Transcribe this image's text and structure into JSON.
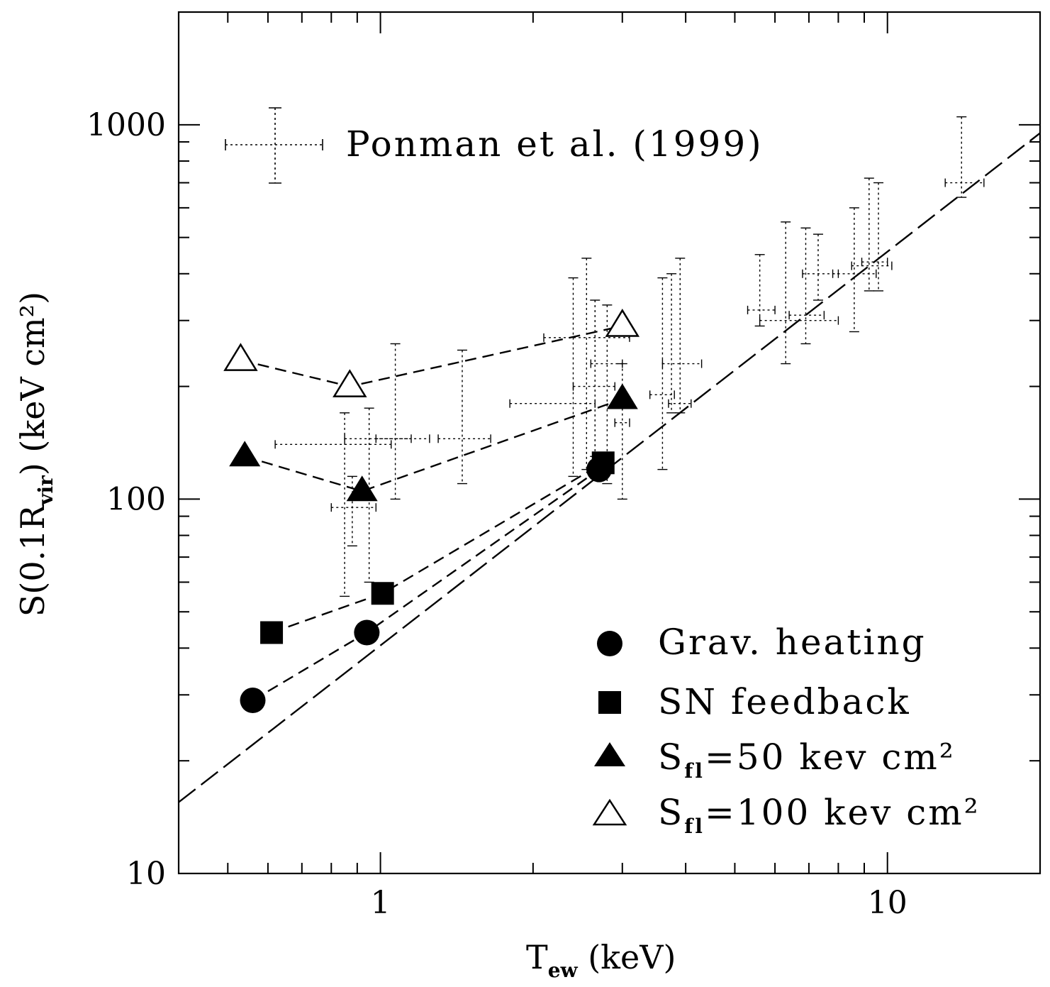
{
  "chart_data": {
    "type": "scatter",
    "xscale": "log",
    "yscale": "log",
    "xlim": [
      0.4,
      20
    ],
    "ylim": [
      10,
      2000
    ],
    "xlabel": {
      "main": "T",
      "sub": "ew",
      "rest": " (keV)"
    },
    "ylabel": {
      "main": "S(0.1R",
      "sub": "vir",
      "rest": ")  (keV cm²)"
    },
    "x_major_ticks": [
      {
        "value": 1,
        "label": "1"
      },
      {
        "value": 10,
        "label": "10"
      }
    ],
    "y_major_ticks": [
      {
        "value": 10,
        "label": "10"
      },
      {
        "value": 100,
        "label": "100"
      },
      {
        "value": 1000,
        "label": "1000"
      }
    ],
    "fit_line": {
      "style": "long-dash",
      "points": [
        [
          0.4,
          15.5
        ],
        [
          20,
          950
        ]
      ]
    },
    "series": [
      {
        "name": "Grav. heating",
        "marker": "circle-filled",
        "connect": true,
        "points": [
          [
            0.56,
            29
          ],
          [
            0.94,
            44
          ],
          [
            2.7,
            120
          ]
        ]
      },
      {
        "name": "SN feedback",
        "marker": "square-filled",
        "connect": true,
        "points": [
          [
            0.61,
            44
          ],
          [
            1.01,
            56
          ],
          [
            2.75,
            125
          ]
        ]
      },
      {
        "name_main": "S",
        "name_sub": "fl",
        "name_rest": "=50 kev cm²",
        "marker": "triangle-filled",
        "connect": true,
        "points": [
          [
            0.54,
            130
          ],
          [
            0.92,
            105
          ],
          [
            3.0,
            185
          ]
        ]
      },
      {
        "name_main": "S",
        "name_sub": "fl",
        "name_rest": "=100 kev cm²",
        "marker": "triangle-open",
        "connect": true,
        "points": [
          [
            0.53,
            235
          ],
          [
            0.87,
            200
          ],
          [
            3.0,
            290
          ]
        ]
      }
    ],
    "observations": {
      "name": "Ponman et al. (1999)",
      "marker": "dotted-errorbar",
      "points": [
        {
          "x": 0.85,
          "y": 140,
          "xerr": [
            0.62,
            1.05
          ],
          "yerr": [
            55,
            170
          ]
        },
        {
          "x": 0.88,
          "y": 95,
          "xerr": [
            0.8,
            0.98
          ],
          "yerr": [
            75,
            115
          ]
        },
        {
          "x": 0.95,
          "y": 145,
          "xerr": [
            0.85,
            1.25
          ],
          "yerr": [
            60,
            175
          ]
        },
        {
          "x": 1.07,
          "y": 145,
          "xerr": [
            0.98,
            1.15
          ],
          "yerr": [
            100,
            260
          ]
        },
        {
          "x": 1.45,
          "y": 145,
          "xerr": [
            1.3,
            1.65
          ],
          "yerr": [
            110,
            250
          ]
        },
        {
          "x": 2.4,
          "y": 180,
          "xerr": [
            1.8,
            2.65
          ],
          "yerr": [
            115,
            390
          ]
        },
        {
          "x": 2.55,
          "y": 270,
          "xerr": [
            2.1,
            3.1
          ],
          "yerr": [
            120,
            440
          ]
        },
        {
          "x": 2.65,
          "y": 200,
          "xerr": [
            2.4,
            2.9
          ],
          "yerr": [
            130,
            340
          ]
        },
        {
          "x": 2.8,
          "y": 230,
          "xerr": [
            2.6,
            3.0
          ],
          "yerr": [
            110,
            330
          ]
        },
        {
          "x": 3.0,
          "y": 160,
          "xerr": [
            2.9,
            3.1
          ],
          "yerr": [
            100,
            230
          ]
        },
        {
          "x": 3.6,
          "y": 190,
          "xerr": [
            3.4,
            3.8
          ],
          "yerr": [
            120,
            390
          ]
        },
        {
          "x": 3.75,
          "y": 230,
          "xerr": [
            3.6,
            4.3
          ],
          "yerr": [
            170,
            400
          ]
        },
        {
          "x": 3.9,
          "y": 180,
          "xerr": [
            3.7,
            4.1
          ],
          "yerr": [
            170,
            440
          ]
        },
        {
          "x": 5.6,
          "y": 320,
          "xerr": [
            5.3,
            6.0
          ],
          "yerr": [
            290,
            450
          ]
        },
        {
          "x": 6.3,
          "y": 300,
          "xerr": [
            5.6,
            8.0
          ],
          "yerr": [
            230,
            550
          ]
        },
        {
          "x": 6.9,
          "y": 310,
          "xerr": [
            6.4,
            7.5
          ],
          "yerr": [
            260,
            530
          ]
        },
        {
          "x": 7.3,
          "y": 400,
          "xerr": [
            6.8,
            8.0
          ],
          "yerr": [
            340,
            510
          ]
        },
        {
          "x": 8.6,
          "y": 400,
          "xerr": [
            7.8,
            9.5
          ],
          "yerr": [
            280,
            600
          ]
        },
        {
          "x": 9.2,
          "y": 420,
          "xerr": [
            8.5,
            10.2
          ],
          "yerr": [
            360,
            720
          ]
        },
        {
          "x": 9.6,
          "y": 430,
          "xerr": [
            8.9,
            10.0
          ],
          "yerr": [
            360,
            700
          ]
        },
        {
          "x": 14.0,
          "y": 700,
          "xerr": [
            13.0,
            15.5
          ],
          "yerr": [
            640,
            1050
          ]
        }
      ]
    },
    "legend": {
      "position": "bottom-right"
    },
    "obs_legend": {
      "position": "top-left"
    }
  }
}
